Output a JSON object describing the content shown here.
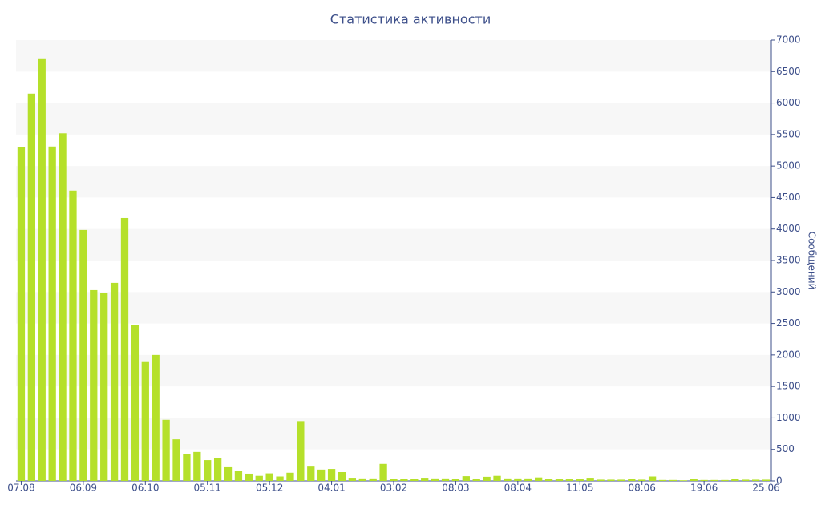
{
  "chart_data": {
    "type": "bar",
    "title": "Статистика активности",
    "y_label": "Сообщений",
    "categories": [
      "07.08",
      null,
      null,
      null,
      null,
      null,
      "06.09",
      null,
      null,
      null,
      null,
      null,
      "06.10",
      null,
      null,
      null,
      null,
      null,
      "05.11",
      null,
      null,
      null,
      null,
      null,
      "05.12",
      null,
      null,
      null,
      null,
      null,
      "04.01",
      null,
      null,
      null,
      null,
      null,
      "03.02",
      null,
      null,
      null,
      null,
      null,
      "08.03",
      null,
      null,
      null,
      null,
      null,
      "08.04",
      null,
      null,
      null,
      null,
      null,
      "11.05",
      null,
      null,
      null,
      null,
      null,
      "08.06",
      null,
      null,
      null,
      null,
      null,
      "19.06",
      null,
      null,
      null,
      null,
      null,
      "25.06"
    ],
    "values": [
      5300,
      6150,
      6710,
      5310,
      5520,
      4610,
      3985,
      3030,
      2990,
      3145,
      4175,
      2480,
      1900,
      2000,
      970,
      660,
      430,
      460,
      330,
      360,
      230,
      165,
      115,
      80,
      120,
      70,
      130,
      950,
      240,
      180,
      190,
      140,
      50,
      40,
      40,
      270,
      35,
      35,
      35,
      50,
      40,
      40,
      35,
      75,
      35,
      65,
      80,
      40,
      40,
      40,
      55,
      35,
      25,
      25,
      25,
      50,
      20,
      20,
      20,
      30,
      20,
      70,
      15,
      15,
      10,
      30,
      15,
      15,
      15,
      30,
      20,
      20,
      20
    ],
    "color": "#b5e02a",
    "ylim": [
      0,
      7000
    ],
    "yticks": [
      0,
      500,
      1000,
      1500,
      2000,
      2500,
      3000,
      3500,
      4000,
      4500,
      5000,
      5500,
      6000,
      6500,
      7000
    ],
    "y_axis_side": "right",
    "grid": true
  }
}
